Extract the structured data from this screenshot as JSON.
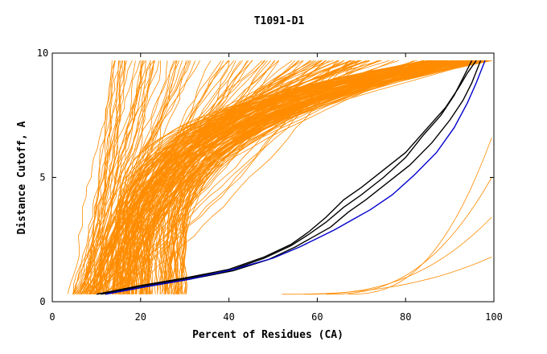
{
  "chart_data": {
    "type": "line",
    "title": "T1091-D1",
    "xlabel": "Percent of Residues (CA)",
    "ylabel": "Distance Cutoff, A",
    "xlim": [
      0,
      100
    ],
    "ylim": [
      0,
      10
    ],
    "x_ticks": [
      "0",
      "20",
      "40",
      "60",
      "80",
      "100"
    ],
    "y_ticks": [
      "0",
      "5",
      "10"
    ],
    "grid": false,
    "legend": "none",
    "colors": {
      "models": "#ff8c00",
      "highlight_black": "#000000",
      "highlight_blue": "#0000cd"
    },
    "highlight_series": [
      {
        "color": "black",
        "x": [
          10,
          20,
          30,
          40,
          48,
          54,
          58,
          62,
          66,
          70,
          75,
          80,
          85,
          89,
          92,
          94,
          96
        ],
        "y": [
          0.3,
          0.65,
          0.95,
          1.3,
          1.8,
          2.3,
          2.8,
          3.4,
          4.1,
          4.6,
          5.3,
          6.0,
          7.0,
          7.8,
          8.6,
          9.2,
          9.7
        ]
      },
      {
        "color": "black",
        "x": [
          11,
          20,
          30,
          40,
          48,
          54,
          58,
          62,
          66,
          70,
          75,
          80,
          84,
          88,
          91,
          93,
          95
        ],
        "y": [
          0.3,
          0.62,
          0.92,
          1.25,
          1.75,
          2.25,
          2.7,
          3.2,
          3.8,
          4.3,
          5.0,
          5.8,
          6.7,
          7.5,
          8.3,
          9.0,
          9.7
        ]
      },
      {
        "color": "black",
        "x": [
          12,
          21,
          31,
          41,
          49,
          55,
          59,
          63,
          67,
          71,
          76,
          81,
          86,
          90,
          93,
          95,
          97
        ],
        "y": [
          0.3,
          0.6,
          0.9,
          1.25,
          1.7,
          2.2,
          2.6,
          3.0,
          3.6,
          4.1,
          4.8,
          5.5,
          6.4,
          7.3,
          8.1,
          8.8,
          9.7
        ]
      },
      {
        "color": "blue",
        "x": [
          12,
          21,
          31,
          41,
          50,
          56,
          60,
          64,
          68,
          72,
          77,
          82,
          87,
          91,
          94,
          96,
          98
        ],
        "y": [
          0.3,
          0.6,
          0.9,
          1.3,
          1.75,
          2.2,
          2.55,
          2.9,
          3.3,
          3.7,
          4.3,
          5.1,
          6.0,
          7.0,
          8.0,
          8.8,
          9.7
        ]
      }
    ]
  }
}
